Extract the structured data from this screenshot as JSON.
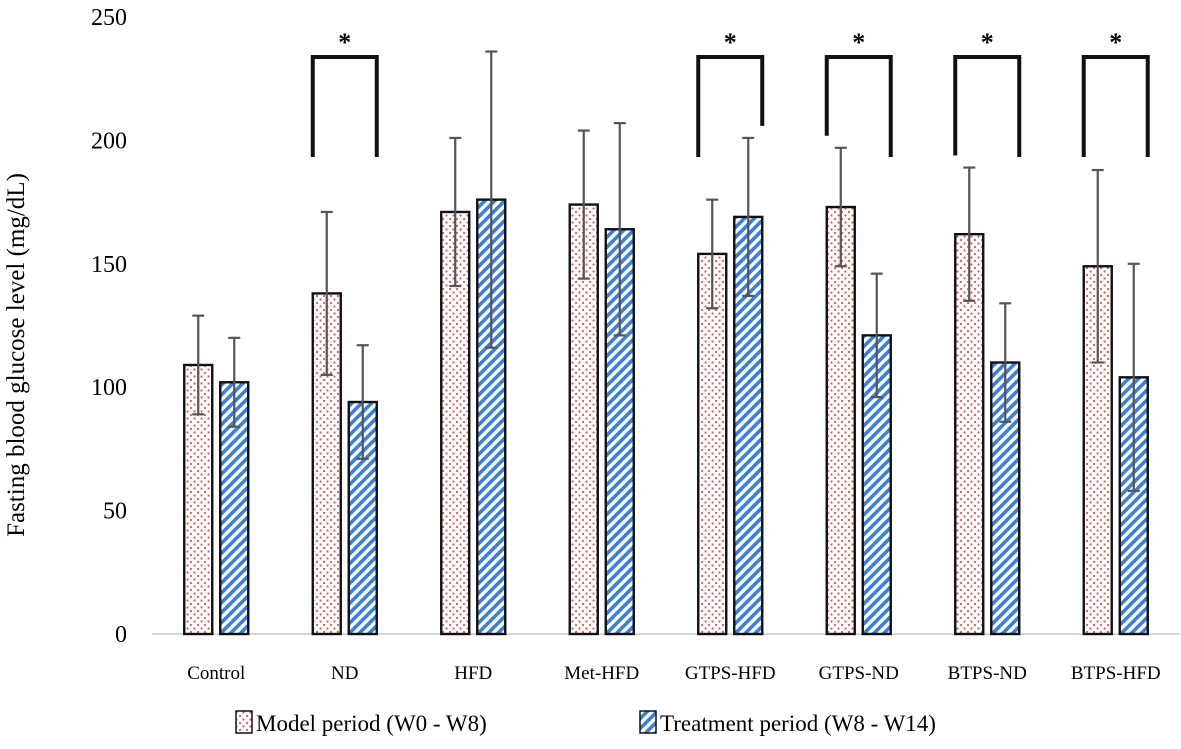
{
  "chart_data": {
    "type": "bar",
    "title": "",
    "xlabel": "",
    "ylabel": "Fasting blood glucose level (mg/dL)",
    "ylim": [
      0,
      250
    ],
    "yticks": [
      0,
      50,
      100,
      150,
      200,
      250
    ],
    "grid": false,
    "legend_position": "bottom",
    "categories": [
      "Control",
      "ND",
      "HFD",
      "Met-HFD",
      "GTPS-HFD",
      "GTPS-ND",
      "BTPS-ND",
      "BTPS-HFD"
    ],
    "series": [
      {
        "name": "Model period (W0 - W8)",
        "pattern": "dots",
        "color": "#e8554e",
        "values": [
          109,
          138,
          171,
          174,
          154,
          173,
          162,
          149
        ],
        "errors": [
          20,
          33,
          30,
          30,
          22,
          24,
          27,
          39
        ]
      },
      {
        "name": "Treatment period (W8 - W14)",
        "pattern": "diagonal-stripes",
        "color": "#3a7fd9",
        "values": [
          102,
          94,
          176,
          164,
          169,
          121,
          110,
          104
        ],
        "errors": [
          18,
          23,
          60,
          43,
          32,
          25,
          24,
          46
        ]
      }
    ],
    "significance": [
      {
        "category": "ND",
        "label": "*"
      },
      {
        "category": "GTPS-HFD",
        "label": "*"
      },
      {
        "category": "GTPS-ND",
        "label": "*"
      },
      {
        "category": "BTPS-ND",
        "label": "*"
      },
      {
        "category": "BTPS-HFD",
        "label": "*"
      }
    ]
  }
}
